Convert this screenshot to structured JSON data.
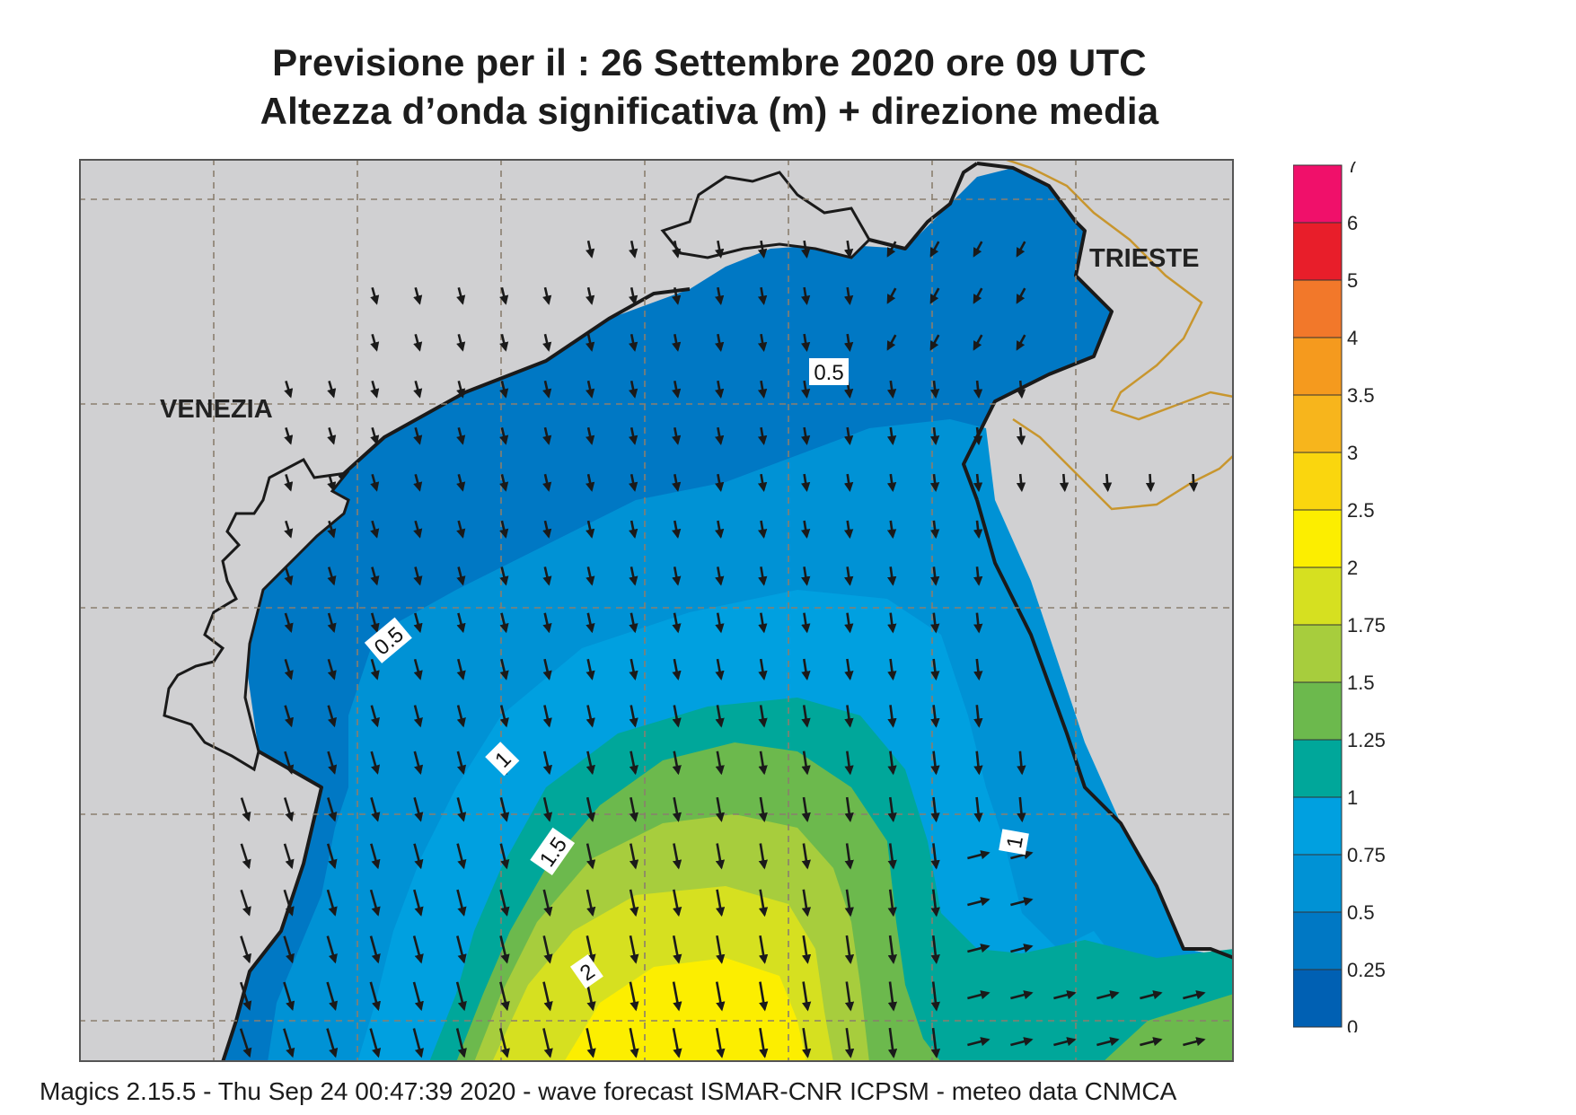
{
  "header": {
    "line1": "Previsione per il  :  26 Settembre 2020   ore 09 UTC",
    "line2": "Altezza d’onda significativa (m) + direzione media"
  },
  "cities": [
    "VENEZIA",
    "TRIESTE"
  ],
  "contour_labels": [
    "0.5",
    "0.5",
    "1",
    "1",
    "1.5",
    "2"
  ],
  "legend": {
    "ticks": [
      "7",
      "6",
      "5",
      "4",
      "3.5",
      "3",
      "2.5",
      "2",
      "1.75",
      "1.5",
      "1.25",
      "1",
      "0.75",
      "0.5",
      "0.25",
      "0"
    ],
    "colors": [
      "#f0106a",
      "#e81e2a",
      "#f2782a",
      "#f59a1e",
      "#f7b51c",
      "#fad60e",
      "#fcee00",
      "#d6e020",
      "#a7cd3d",
      "#6cb94d",
      "#00a79a",
      "#00a0e0",
      "#0092d5",
      "#0078c4",
      "#0060b3"
    ]
  },
  "colors": {
    "land": "#d0d0d2",
    "coast": "#1a1a1a",
    "border": "#c8962e",
    "grid": "#8a7f6e"
  },
  "footer": "Magics 2.15.5 - Thu Sep 24 00:47:39 2020 - wave forecast  ISMAR-CNR  ICPSM - meteo data   CNMCA"
}
